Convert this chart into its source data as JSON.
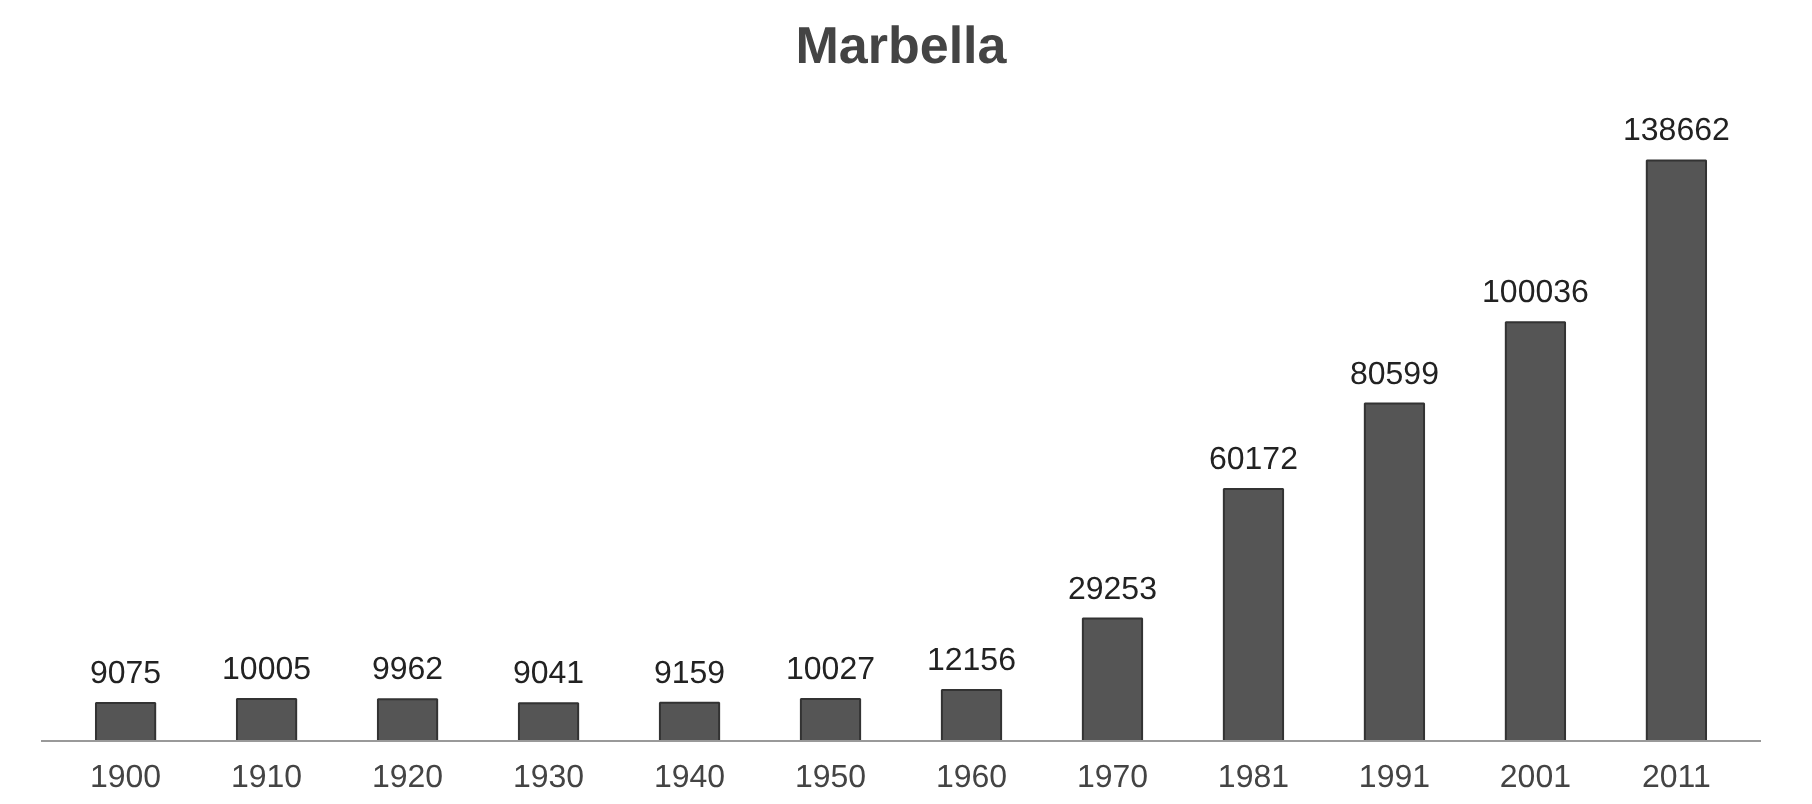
{
  "chart_data": {
    "type": "bar",
    "title": "Marbella",
    "categories": [
      "1900",
      "1910",
      "1920",
      "1930",
      "1940",
      "1950",
      "1960",
      "1970",
      "1981",
      "1991",
      "2001",
      "2011"
    ],
    "values": [
      9075,
      10005,
      9962,
      9041,
      9159,
      10027,
      12156,
      29253,
      60172,
      80599,
      100036,
      138662
    ],
    "color": "#555555",
    "data_labels": true
  }
}
